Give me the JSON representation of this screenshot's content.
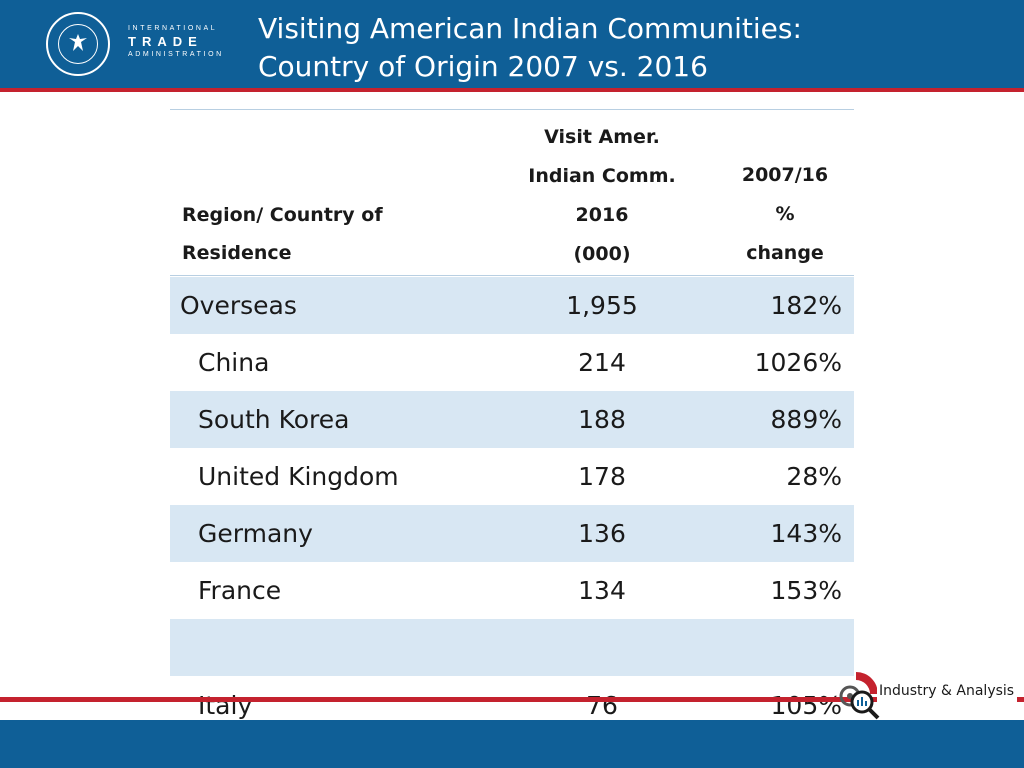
{
  "header": {
    "title_line1": "Visiting American Indian Communities:",
    "title_line2": "Country of Origin 2007 vs. 2016",
    "org_line1": "INTERNATIONAL",
    "org_line2": "TRADE",
    "org_line3": "ADMINISTRATION",
    "seal_icon": "department-of-commerce-seal-icon"
  },
  "table": {
    "headers": {
      "region": [
        "Region/ Country  of",
        "Residence"
      ],
      "visits": [
        "Visit Amer.",
        "Indian Comm.",
        "2016",
        "(000)"
      ],
      "change": [
        "2007/16",
        "%",
        "change"
      ]
    },
    "rows": [
      {
        "name": "Overseas",
        "visits": "1,955",
        "change": "182%"
      },
      {
        "name": "China",
        "visits": "214",
        "change": "1026%"
      },
      {
        "name": "South Korea",
        "visits": "188",
        "change": "889%"
      },
      {
        "name": "United Kingdom",
        "visits": "178",
        "change": "28%"
      },
      {
        "name": "Germany",
        "visits": "136",
        "change": "143%"
      },
      {
        "name": "France",
        "visits": "134",
        "change": "153%"
      },
      {
        "name": "",
        "visits": "",
        "change": ""
      },
      {
        "name": "Italy",
        "visits": "76",
        "change": "105%"
      }
    ]
  },
  "footer": {
    "brand_text": "Industry & Analysis",
    "brand_icon": "industry-analysis-gear-magnifier-icon"
  },
  "colors": {
    "header_blue": "#0f5f97",
    "accent_red": "#c4222e",
    "row_shade": "#d8e7f3"
  }
}
